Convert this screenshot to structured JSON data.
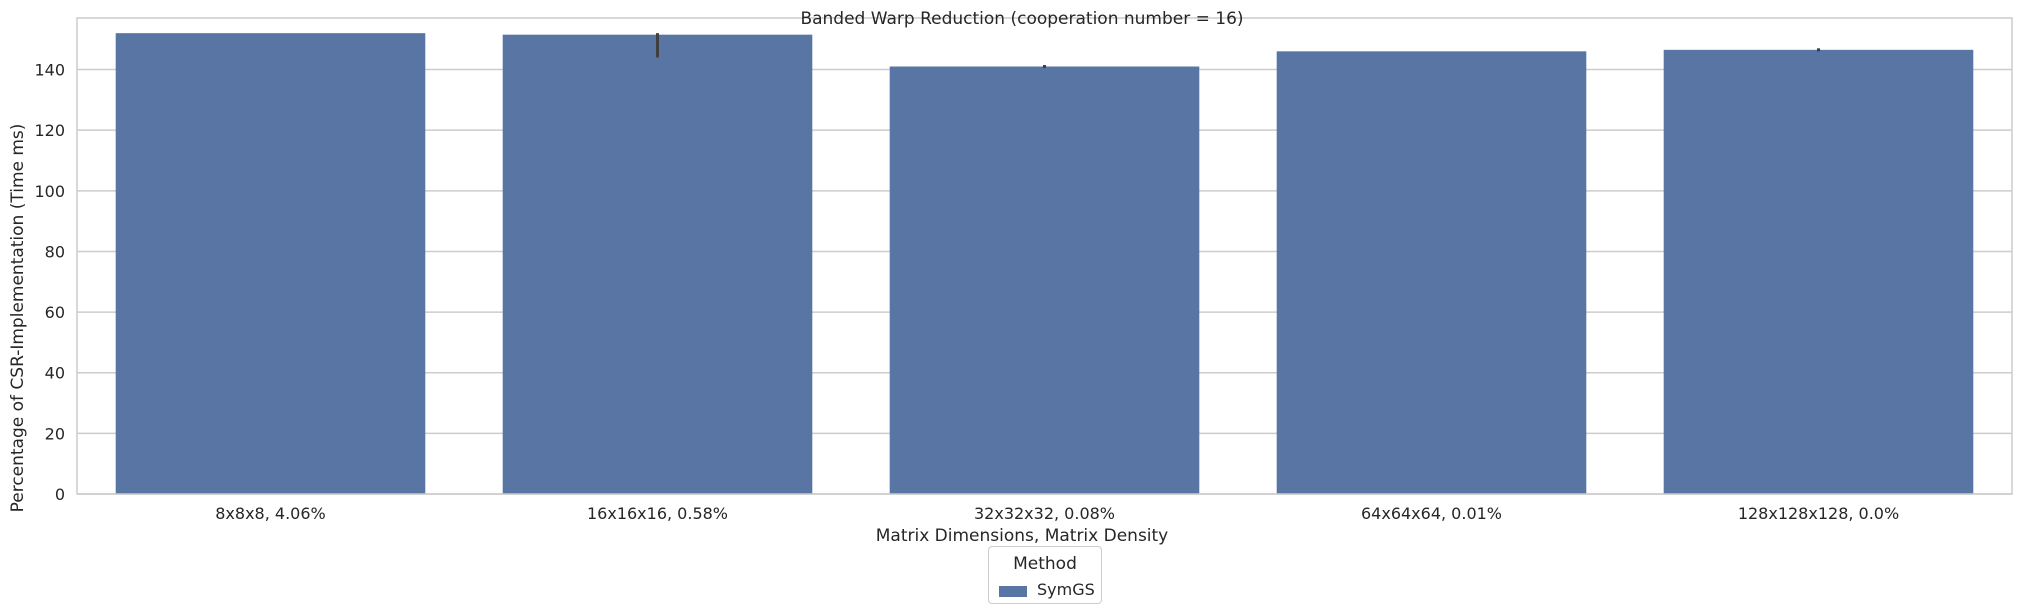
{
  "chart_data": {
    "type": "bar",
    "title": "Banded Warp Reduction (cooperation number = 16)",
    "xlabel": "Matrix Dimensions, Matrix Density",
    "ylabel": "Percentage of CSR-Implementation (Time ms)",
    "categories": [
      "8x8x8, 4.06%",
      "16x16x16, 0.58%",
      "32x32x32, 0.08%",
      "64x64x64, 0.01%",
      "128x128x128, 0.0%"
    ],
    "series": [
      {
        "name": "SymGS",
        "values": [
          152,
          151.5,
          141,
          146,
          146.5
        ],
        "error_low": [
          152,
          144,
          140.5,
          146,
          146
        ],
        "error_high": [
          152,
          152,
          141.5,
          146,
          147
        ]
      }
    ],
    "ylim": [
      0,
      157
    ],
    "yticks": [
      0,
      20,
      40,
      60,
      80,
      100,
      120,
      140
    ],
    "grid": true,
    "legend": {
      "title": "Method",
      "position": "bottom-center"
    },
    "colors": {
      "bar": "#5875a4",
      "grid": "#cccccc",
      "errorbar": "#3f3f3f",
      "text": "#262626"
    }
  }
}
